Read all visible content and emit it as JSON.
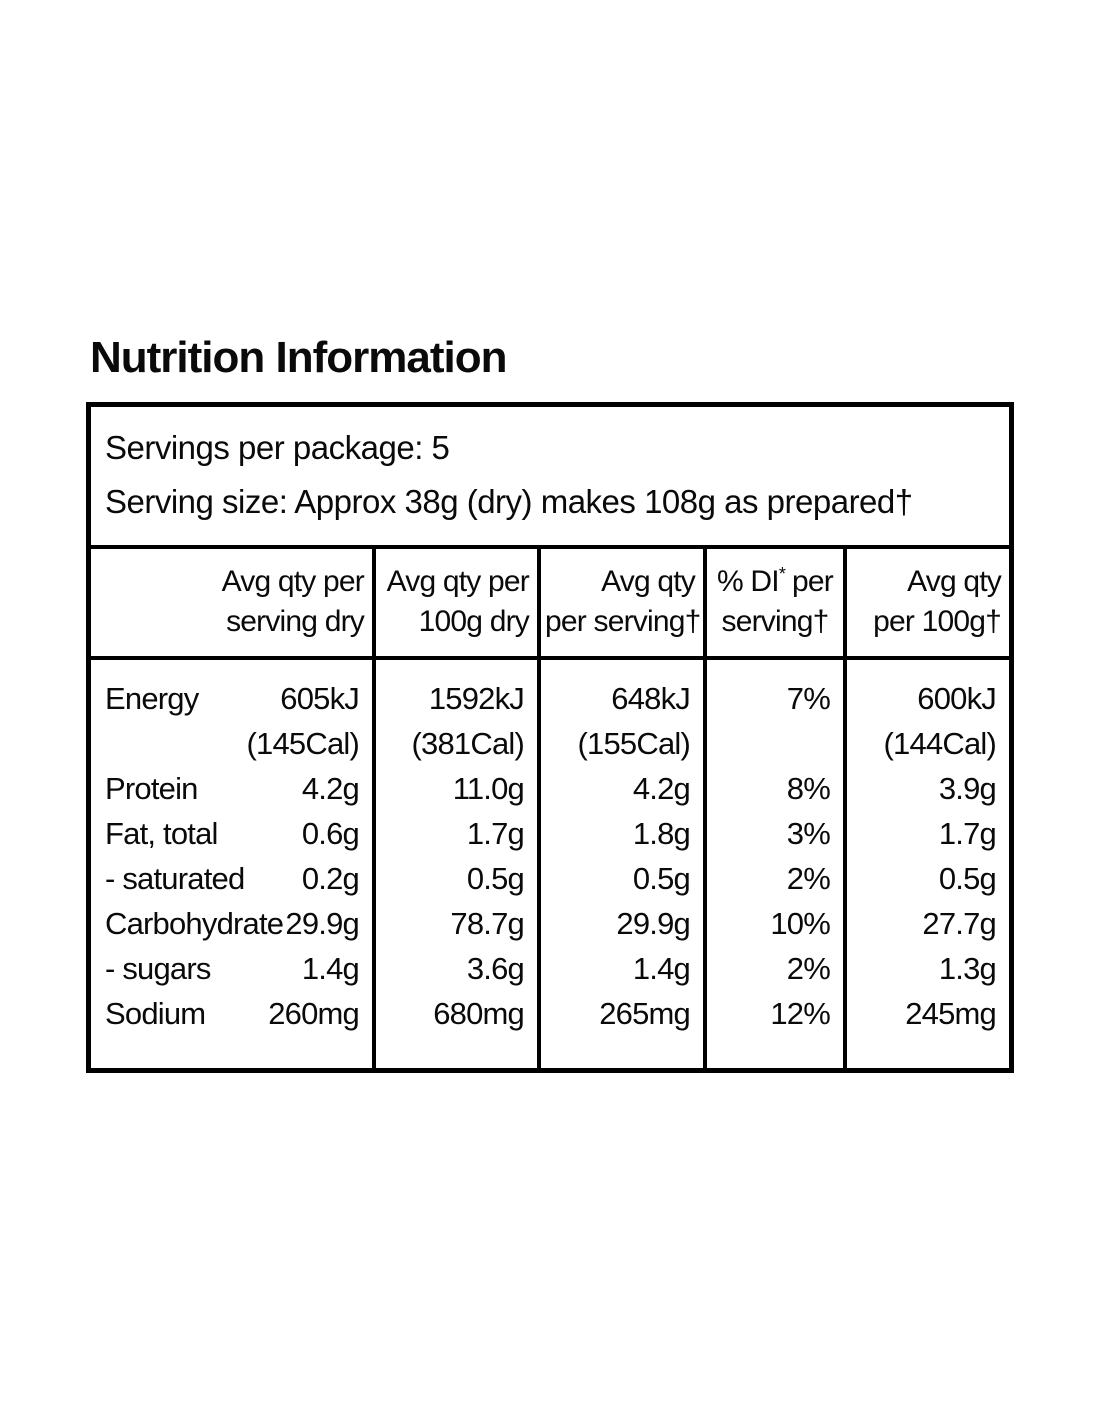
{
  "title": "Nutrition Information",
  "panel": {
    "servings_per_package": "Servings per package: 5",
    "serving_size": "Serving size: Approx 38g (dry) makes 108g as prepared†"
  },
  "table": {
    "headers": [
      {
        "line1": "Avg qty per",
        "line2": "serving dry"
      },
      {
        "line1": "Avg qty per",
        "line2": "100g dry"
      },
      {
        "line1": "Avg qty",
        "line2": "per serving†"
      },
      {
        "line1_pre": "% DI",
        "line1_sup": "*",
        "line1_post": "per",
        "line2": "serving†"
      },
      {
        "line1": "Avg qty",
        "line2": "per 100g†"
      }
    ],
    "rows": [
      {
        "label": "Energy",
        "values": [
          "605kJ",
          "1592kJ",
          "648kJ",
          "7%",
          "600kJ"
        ]
      },
      {
        "label": "",
        "values": [
          "(145Cal)",
          "(381Cal)",
          "(155Cal)",
          "",
          "(144Cal)"
        ]
      },
      {
        "label": "Protein",
        "values": [
          "4.2g",
          "11.0g",
          "4.2g",
          "8%",
          "3.9g"
        ]
      },
      {
        "label": "Fat, total",
        "values": [
          "0.6g",
          "1.7g",
          "1.8g",
          "3%",
          "1.7g"
        ]
      },
      {
        "label": "- saturated",
        "values": [
          "0.2g",
          "0.5g",
          "0.5g",
          "2%",
          "0.5g"
        ]
      },
      {
        "label": "Carbohydrate",
        "values": [
          "29.9g",
          "78.7g",
          "29.9g",
          "10%",
          "27.7g"
        ]
      },
      {
        "label": "- sugars",
        "values": [
          "1.4g",
          "3.6g",
          "1.4g",
          "2%",
          "1.3g"
        ]
      },
      {
        "label": "Sodium",
        "values": [
          "260mg",
          "680mg",
          "265mg",
          "12%",
          "245mg"
        ]
      }
    ]
  },
  "colors": {
    "text": "#0a0a0a",
    "border": "#000000",
    "background": "#ffffff"
  }
}
